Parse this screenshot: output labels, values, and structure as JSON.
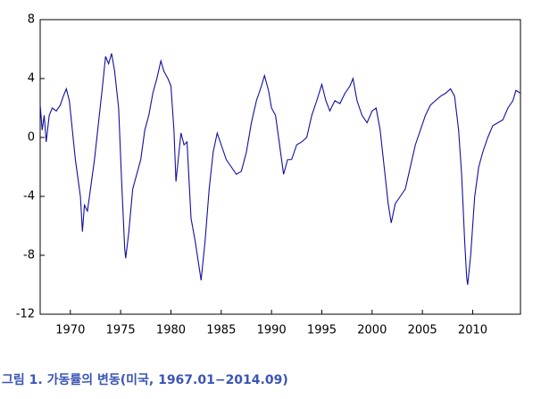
{
  "chart_data": {
    "type": "line",
    "caption": "그림 1. 가동률의 변동(미국, 1967.01−2014.09)",
    "color": "#1010a0",
    "xlim": [
      1967,
      2014.75
    ],
    "xticks": [
      1970,
      1975,
      1980,
      1985,
      1990,
      1995,
      2000,
      2005,
      2010
    ],
    "ylim": [
      -12,
      8
    ],
    "yticks": [
      -12,
      -8,
      -4,
      0,
      4,
      8
    ],
    "grid": false,
    "x": [
      1967.0,
      1967.2,
      1967.4,
      1967.6,
      1967.9,
      1968.2,
      1968.6,
      1969.0,
      1969.3,
      1969.6,
      1969.9,
      1970.2,
      1970.5,
      1970.8,
      1971.0,
      1971.2,
      1971.4,
      1971.7,
      1972.0,
      1972.4,
      1972.8,
      1973.2,
      1973.5,
      1973.8,
      1974.1,
      1974.4,
      1974.8,
      1975.1,
      1975.4,
      1975.5,
      1975.8,
      1976.2,
      1976.6,
      1977.0,
      1977.4,
      1977.8,
      1978.2,
      1978.6,
      1979.0,
      1979.3,
      1979.7,
      1980.0,
      1980.3,
      1980.5,
      1980.8,
      1981.0,
      1981.3,
      1981.6,
      1982.0,
      1982.4,
      1982.8,
      1983.0,
      1983.4,
      1983.8,
      1984.2,
      1984.6,
      1985.0,
      1985.5,
      1986.0,
      1986.5,
      1987.0,
      1987.5,
      1988.0,
      1988.5,
      1989.0,
      1989.3,
      1989.7,
      1990.0,
      1990.4,
      1990.8,
      1991.2,
      1991.6,
      1992.0,
      1992.5,
      1993.0,
      1993.5,
      1994.0,
      1994.5,
      1995.0,
      1995.4,
      1995.8,
      1996.3,
      1996.8,
      1997.3,
      1997.8,
      1998.1,
      1998.5,
      1999.0,
      1999.5,
      2000.0,
      2000.4,
      2000.8,
      2001.2,
      2001.6,
      2001.9,
      2002.3,
      2002.8,
      2003.3,
      2003.8,
      2004.3,
      2004.8,
      2005.3,
      2005.8,
      2006.3,
      2006.8,
      2007.3,
      2007.8,
      2008.2,
      2008.6,
      2008.9,
      2009.2,
      2009.4,
      2009.5,
      2009.8,
      2010.2,
      2010.6,
      2011.0,
      2011.5,
      2012.0,
      2012.5,
      2013.0,
      2013.5,
      2014.0,
      2014.3,
      2014.75
    ],
    "values": [
      2.2,
      0.5,
      1.5,
      -0.3,
      1.5,
      2.0,
      1.8,
      2.2,
      2.8,
      3.3,
      2.5,
      0.5,
      -1.5,
      -3.0,
      -4.0,
      -6.4,
      -4.6,
      -5.0,
      -3.5,
      -1.5,
      1.0,
      3.5,
      5.5,
      5.0,
      5.7,
      4.5,
      2.0,
      -3.0,
      -7.5,
      -8.2,
      -6.5,
      -3.5,
      -2.5,
      -1.5,
      0.5,
      1.5,
      3.0,
      4.0,
      5.2,
      4.5,
      4.0,
      3.5,
      0.5,
      -3.0,
      -1.0,
      0.3,
      -0.5,
      -0.3,
      -5.5,
      -7.0,
      -8.8,
      -9.7,
      -7.0,
      -3.5,
      -1.0,
      0.3,
      -0.5,
      -1.5,
      -2.0,
      -2.5,
      -2.3,
      -1.0,
      1.0,
      2.5,
      3.5,
      4.2,
      3.2,
      2.0,
      1.5,
      -0.5,
      -2.5,
      -1.5,
      -1.5,
      -0.5,
      -0.3,
      0.0,
      1.5,
      2.5,
      3.6,
      2.5,
      1.8,
      2.5,
      2.3,
      3.0,
      3.5,
      4.0,
      2.5,
      1.5,
      1.0,
      1.8,
      2.0,
      0.5,
      -2.0,
      -4.5,
      -5.8,
      -4.5,
      -4.0,
      -3.5,
      -2.0,
      -0.5,
      0.5,
      1.5,
      2.2,
      2.5,
      2.8,
      3.0,
      3.3,
      2.8,
      0.5,
      -2.5,
      -7.0,
      -9.5,
      -10.0,
      -8.0,
      -4.0,
      -2.0,
      -1.0,
      0.0,
      0.8,
      1.0,
      1.2,
      2.0,
      2.5,
      3.2,
      3.0
    ]
  }
}
